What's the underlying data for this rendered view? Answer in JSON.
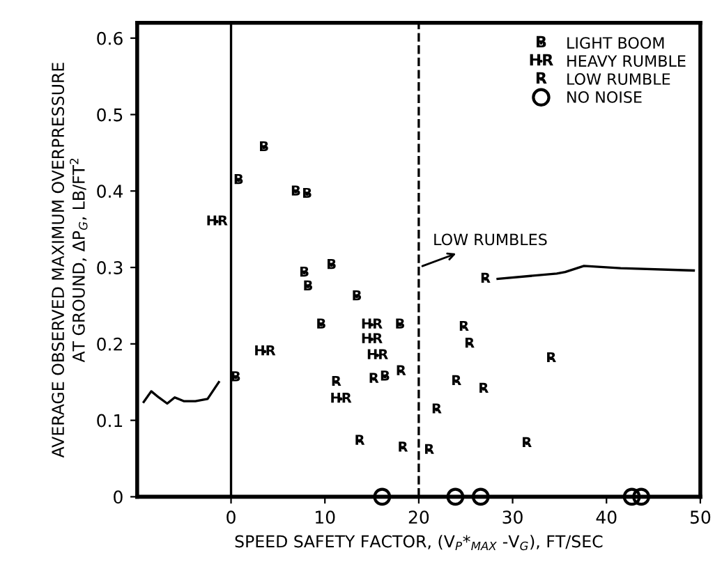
{
  "chart_data": {
    "type": "scatter",
    "xlabel": "SPEED SAFETY FACTOR, (V$_{P}$*$_{MAX}$ -V$_{G}$), FT/SEC",
    "ylabel": "AVERAGE OBSERVED MAXIMUM OVERPRESSURE\nAT GROUND, ΔP$_{G}$, LB/FT$^{2}$",
    "xlim": [
      -10,
      50
    ],
    "xticks": [
      0,
      10,
      20,
      30,
      40,
      50
    ],
    "ylim": [
      0,
      0.62
    ],
    "yticks": [
      0,
      0.1,
      0.2,
      0.3,
      0.4,
      0.5,
      0.6
    ],
    "grid": false,
    "legend": "top right",
    "series": [
      {
        "name": "LIGHT BOOM",
        "color": "#000000",
        "x": [
          3.5,
          0.8,
          6.9,
          8.1,
          10.7,
          7.8,
          8.2,
          13.4,
          9.6,
          18.0,
          0.5,
          16.4
        ],
        "values": [
          0.457,
          0.414,
          0.399,
          0.396,
          0.303,
          0.293,
          0.275,
          0.262,
          0.225,
          0.225,
          0.156,
          0.157
        ],
        "value_labels": [
          "B",
          "B",
          "B",
          "B",
          "B",
          "B",
          "B",
          "B",
          "B",
          "B",
          "B",
          "B"
        ]
      },
      {
        "name": "HEAVY RUMBLE",
        "color": "#000000",
        "x": [
          -1.5,
          15.0,
          15.0,
          3.6,
          15.6,
          11.7
        ],
        "values": [
          0.36,
          0.225,
          0.206,
          0.19,
          0.185,
          0.128
        ],
        "value_labels": [
          "HR",
          "HR",
          "HR",
          "HR",
          "HR",
          "HR"
        ]
      },
      {
        "name": "LOW RUMBLE",
        "color": "#000000",
        "x": [
          11.2,
          15.2,
          18.1,
          13.7,
          18.3,
          21.1,
          21.9,
          27.1,
          24.8,
          25.4,
          34.1,
          24.0,
          26.9,
          31.5
        ],
        "values": [
          0.15,
          0.154,
          0.164,
          0.073,
          0.064,
          0.061,
          0.114,
          0.285,
          0.222,
          0.2,
          0.181,
          0.151,
          0.141,
          0.07
        ],
        "value_labels": [
          "R",
          "R",
          "R",
          "R",
          "R",
          "R",
          "R",
          "R",
          "R",
          "R",
          "R",
          "R",
          "R",
          "R"
        ]
      },
      {
        "name": "NO NOISE",
        "color": "#000000",
        "marker": "circle",
        "x": [
          16.1,
          23.9,
          26.6,
          42.7,
          43.7
        ],
        "values": [
          0,
          0,
          0,
          0,
          0
        ]
      },
      {
        "type": "line",
        "color": "#000000",
        "x": [
          -9.3,
          -8.5,
          -7.7,
          -6.8,
          -6,
          -5,
          -3.8,
          -2.5,
          -1.3
        ],
        "values": [
          0.124,
          0.138,
          0.13,
          0.122,
          0.13,
          0.125,
          0.125,
          0.128,
          0.15
        ]
      },
      {
        "type": "line",
        "color": "#000000",
        "x": [
          49.3,
          41.5,
          37.6,
          35.6,
          34.7,
          28.4
        ],
        "values": [
          0.296,
          0.299,
          0.302,
          0.294,
          0.292,
          0.285
        ]
      }
    ],
    "ref_lines": [
      {
        "axis": "x",
        "value": 0,
        "color": "#000000",
        "line_style": "solid"
      },
      {
        "axis": "x",
        "value": 20,
        "color": "#000000",
        "line_style": "dashed"
      }
    ],
    "annotations": [
      {
        "text": "LOW RUMBLES",
        "x": 20,
        "y": 0.3
      }
    ]
  }
}
